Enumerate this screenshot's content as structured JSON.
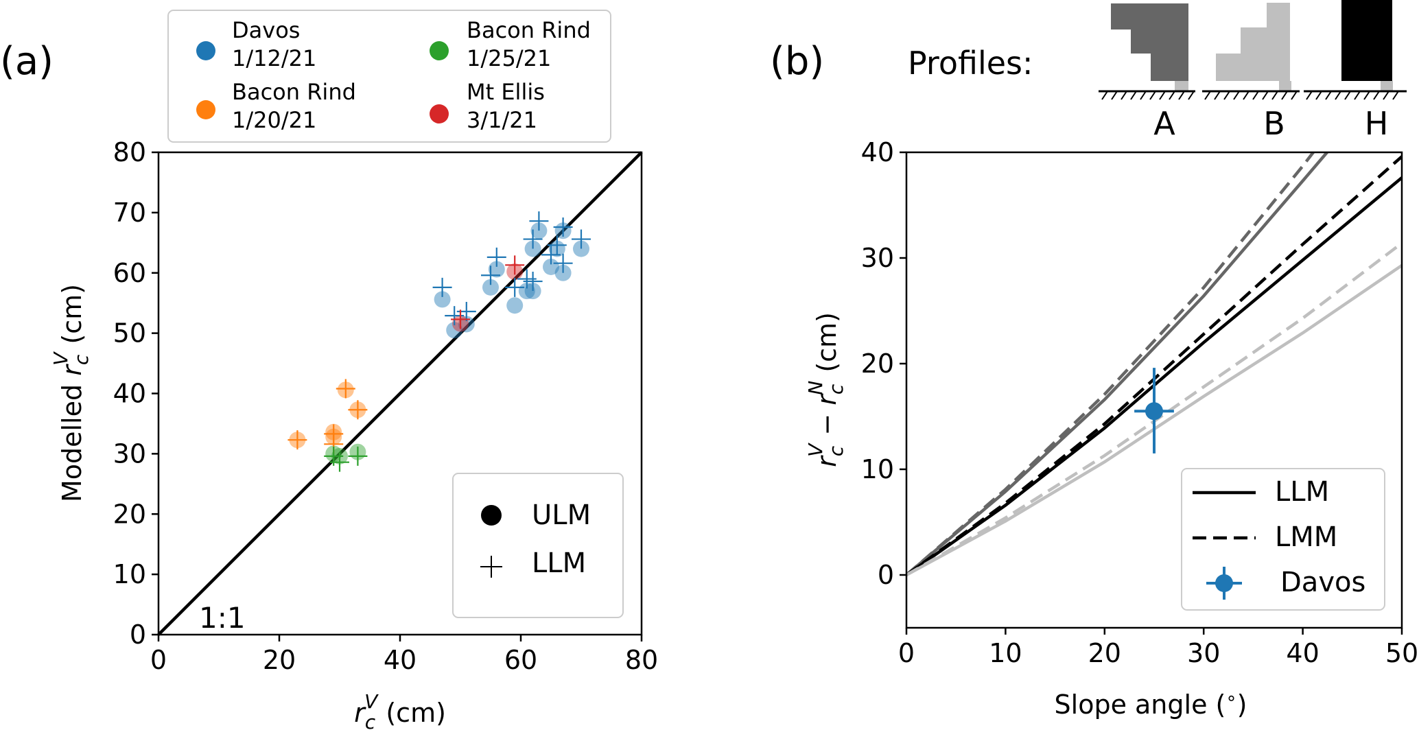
{
  "chart_data": [
    {
      "panel": "(a)",
      "type": "scatter",
      "xlabel_sym": "r",
      "xlabel_sub": "c",
      "xlabel_sup": "V",
      "xlabel_unit": " (cm)",
      "ylabel_pre": "Modelled ",
      "ylabel_sym": "r",
      "ylabel_sub": "c",
      "ylabel_sup": "V",
      "ylabel_unit": " (cm)",
      "xlim": [
        0,
        80
      ],
      "ylim": [
        0,
        80
      ],
      "xticks": [
        0,
        20,
        40,
        60,
        80
      ],
      "yticks": [
        0,
        10,
        20,
        30,
        40,
        50,
        60,
        70,
        80
      ],
      "reference_line_label": "1:1",
      "legend_groups": [
        {
          "line1": "Davos",
          "line2": "1/12/21",
          "color": "#1f77b4"
        },
        {
          "line1": "Bacon Rind",
          "line2": "1/20/21",
          "color": "#ff7f0e"
        },
        {
          "line1": "Bacon Rind",
          "line2": "1/25/21",
          "color": "#2ca02c"
        },
        {
          "line1": "Mt Ellis",
          "line2": "3/1/21",
          "color": "#d62728"
        }
      ],
      "legend_markers": [
        {
          "label": "ULM",
          "marker": "circle"
        },
        {
          "label": "LLM",
          "marker": "plus"
        }
      ],
      "series": [
        {
          "name": "Davos 1/12/21",
          "color": "#1f77b4",
          "ULM": [
            [
              47,
              55.6
            ],
            [
              49,
              50.5
            ],
            [
              51,
              51.5
            ],
            [
              55,
              57.6
            ],
            [
              56,
              60.6
            ],
            [
              59,
              54.6
            ],
            [
              61,
              57
            ],
            [
              62,
              57
            ],
            [
              62,
              64
            ],
            [
              63,
              67
            ],
            [
              65,
              61
            ],
            [
              66,
              64
            ],
            [
              67,
              60
            ],
            [
              67,
              67
            ],
            [
              70,
              64
            ]
          ],
          "LLM": [
            [
              47,
              57.6
            ],
            [
              49,
              52.9
            ],
            [
              51,
              53.6
            ],
            [
              55,
              59.6
            ],
            [
              56,
              62.6
            ],
            [
              59,
              57.6
            ],
            [
              61,
              59
            ],
            [
              62,
              58.6
            ],
            [
              62,
              65.6
            ],
            [
              63,
              68.6
            ],
            [
              65,
              63
            ],
            [
              66,
              64.6
            ],
            [
              67,
              61.6
            ],
            [
              67,
              67.6
            ],
            [
              70,
              65.6
            ]
          ]
        },
        {
          "name": "Bacon Rind 1/20/21",
          "color": "#ff7f0e",
          "ULM": [
            [
              23,
              32.3
            ],
            [
              29,
              32.8
            ],
            [
              29,
              33.6
            ],
            [
              31,
              40.6
            ],
            [
              33,
              37.3
            ]
          ],
          "LLM": [
            [
              23,
              32.3
            ],
            [
              29,
              31.6
            ],
            [
              29,
              33.3
            ],
            [
              31,
              40.8
            ],
            [
              33,
              37.3
            ]
          ]
        },
        {
          "name": "Bacon Rind 1/25/21",
          "color": "#2ca02c",
          "ULM": [
            [
              29,
              30
            ],
            [
              30,
              29.6
            ],
            [
              33,
              30.3
            ]
          ],
          "LLM": [
            [
              29,
              29.6
            ],
            [
              30,
              28.6
            ],
            [
              33,
              29.6
            ]
          ]
        },
        {
          "name": "Mt Ellis 3/1/21",
          "color": "#d62728",
          "ULM": [
            [
              50,
              51.6
            ],
            [
              59,
              60.2
            ]
          ],
          "LLM": [
            [
              50,
              52.3
            ],
            [
              59,
              61.3
            ]
          ]
        }
      ]
    },
    {
      "panel": "(b)",
      "type": "line",
      "xlabel": "Slope angle (",
      "xlabel_deg": "∘",
      "xlabel_close": ")",
      "ylabel_sup1": "V",
      "ylabel_sub1": "c",
      "ylabel_mid": " − ",
      "ylabel_sup2": "N",
      "ylabel_sub2": "c",
      "ylabel_unit": " (cm)",
      "xlim": [
        0,
        50
      ],
      "ylim": [
        -5,
        40
      ],
      "xticks": [
        0,
        10,
        20,
        30,
        40,
        50
      ],
      "yticks": [
        0,
        10,
        20,
        30,
        40
      ],
      "profiles_title": "Profiles:",
      "profiles": [
        {
          "label": "A",
          "color": "#666666"
        },
        {
          "label": "B",
          "color": "#bfbfbf"
        },
        {
          "label": "H",
          "color": "#000000"
        }
      ],
      "curves": [
        {
          "profile": "A",
          "model": "LLM",
          "color": "#666666",
          "style": "solid",
          "x": [
            0,
            10,
            20,
            30,
            40,
            45
          ],
          "y": [
            0,
            7.9,
            16.6,
            26.4,
            37.3,
            42.8
          ]
        },
        {
          "profile": "A",
          "model": "LMM",
          "color": "#666666",
          "style": "dashed",
          "x": [
            0,
            10,
            20,
            30,
            40,
            44
          ],
          "y": [
            0,
            8.1,
            17.1,
            27.2,
            38.7,
            43.6
          ]
        },
        {
          "profile": "H",
          "model": "LLM",
          "color": "#000000",
          "style": "solid",
          "x": [
            0,
            10,
            20,
            30,
            40,
            50
          ],
          "y": [
            0,
            6.6,
            13.9,
            22.0,
            29.8,
            37.6
          ]
        },
        {
          "profile": "H",
          "model": "LMM",
          "color": "#000000",
          "style": "dashed",
          "x": [
            0,
            10,
            20,
            30,
            40,
            50
          ],
          "y": [
            0,
            6.8,
            14.3,
            22.8,
            31.3,
            39.6
          ]
        },
        {
          "profile": "B",
          "model": "LLM",
          "color": "#bfbfbf",
          "style": "solid",
          "x": [
            0,
            10,
            20,
            30,
            40,
            50
          ],
          "y": [
            0,
            5.1,
            10.7,
            16.9,
            22.9,
            29.3
          ]
        },
        {
          "profile": "B",
          "model": "LMM",
          "color": "#bfbfbf",
          "style": "dashed",
          "x": [
            0,
            10,
            20,
            30,
            40,
            50
          ],
          "y": [
            0,
            5.4,
            11.3,
            17.8,
            24.3,
            31.4
          ]
        }
      ],
      "observation": {
        "label": "Davos",
        "x": 25,
        "y": 15.5,
        "xerr": 2,
        "yerr_low": 4,
        "yerr_high": 4.1,
        "color": "#1f77b4"
      },
      "legend": [
        {
          "label": "LLM",
          "style": "solid"
        },
        {
          "label": "LMM",
          "style": "dashed"
        },
        {
          "label": "Davos",
          "style": "errorbar"
        }
      ]
    }
  ]
}
